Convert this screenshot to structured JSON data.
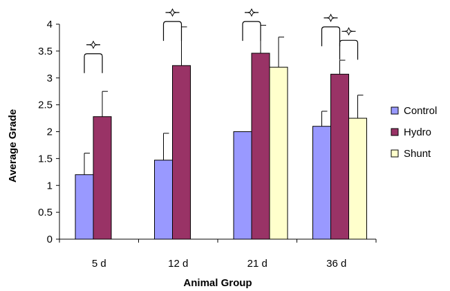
{
  "chart_data": {
    "type": "bar",
    "title": "",
    "xlabel": "Animal Group",
    "ylabel": "Average Grade",
    "ylim": [
      0,
      4
    ],
    "yticks": [
      0,
      0.5,
      1,
      1.5,
      2,
      2.5,
      3,
      3.5,
      4
    ],
    "ytick_labels": [
      "0",
      "0.5",
      "1",
      "1.5",
      "2",
      "2.5",
      "3",
      "3.5",
      "4"
    ],
    "categories": [
      "5 d",
      "12 d",
      "21 d",
      "36 d"
    ],
    "grid": false,
    "legend_position": "right",
    "series": [
      {
        "name": "Control",
        "color": "#9999ff",
        "values": [
          1.2,
          1.47,
          2.0,
          2.1
        ],
        "errors": [
          0.4,
          0.5,
          null,
          0.28
        ]
      },
      {
        "name": "Hydro",
        "color": "#993366",
        "values": [
          2.28,
          3.23,
          3.46,
          3.07
        ],
        "errors": [
          0.47,
          0.72,
          0.52,
          0.26
        ]
      },
      {
        "name": "Shunt",
        "color": "#ffffcc",
        "values": [
          null,
          null,
          3.2,
          2.25
        ],
        "errors": [
          null,
          null,
          0.56,
          0.43
        ]
      }
    ],
    "significance_brackets": [
      {
        "category": "5 d",
        "from_series": "Control",
        "to_series": "Hydro",
        "level": 3.45,
        "marker": "star"
      },
      {
        "category": "12 d",
        "from_series": "Control",
        "to_series": "Hydro",
        "level": 4.05,
        "marker": "star"
      },
      {
        "category": "21 d",
        "from_series": "Control",
        "to_series": "Hydro",
        "level": 4.05,
        "marker": "star"
      },
      {
        "category": "36 d",
        "from_series": "Control",
        "to_series": "Hydro",
        "level": 3.95,
        "marker": "star"
      },
      {
        "category": "36 d",
        "from_series": "Hydro",
        "to_series": "Shunt",
        "level": 3.7,
        "marker": "star"
      }
    ]
  }
}
